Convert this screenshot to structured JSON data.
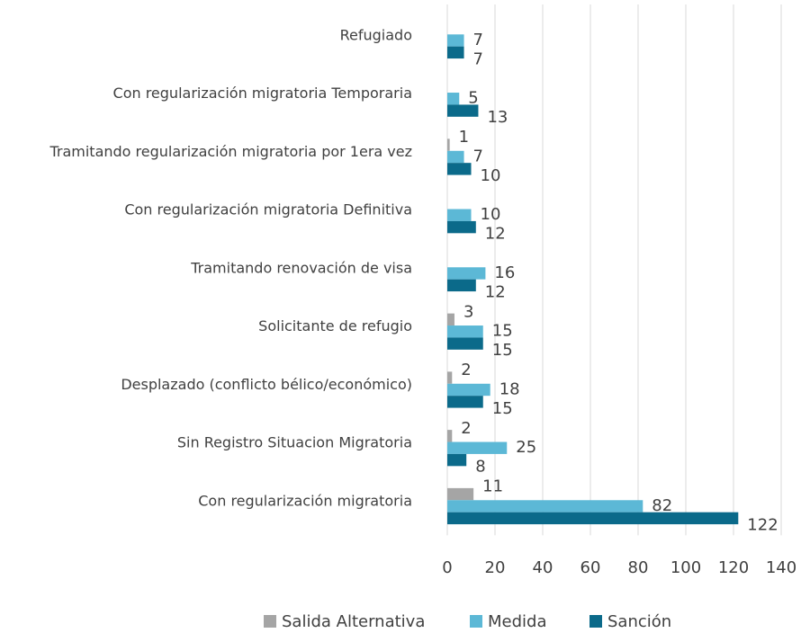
{
  "chart_data": {
    "type": "hbar",
    "categories": [
      "Refugiado",
      "Con regularización migratoria Temporaria",
      "Tramitando regularización migratoria por 1era vez",
      "Con regularización migratoria Definitiva",
      "Tramitando renovación de visa",
      "Solicitante de refugio",
      "Desplazado (conflicto bélico/económico)",
      "Sin Registro Situacion Migratoria",
      "Con regularización migratoria"
    ],
    "series": [
      {
        "name": "Salida Alternativa",
        "color": "#a5a5a5",
        "values": [
          null,
          null,
          1,
          null,
          null,
          3,
          2,
          2,
          11
        ]
      },
      {
        "name": "Medida",
        "color": "#5cb8d6",
        "values": [
          7,
          5,
          7,
          10,
          16,
          15,
          18,
          25,
          82
        ]
      },
      {
        "name": "Sanción",
        "color": "#0b6a8a",
        "values": [
          7,
          13,
          10,
          12,
          12,
          15,
          15,
          8,
          122
        ]
      }
    ],
    "xlim": [
      0,
      140
    ],
    "xticks": [
      0,
      20,
      40,
      60,
      80,
      100,
      120,
      140
    ],
    "grid": true,
    "legend": "bottom"
  }
}
